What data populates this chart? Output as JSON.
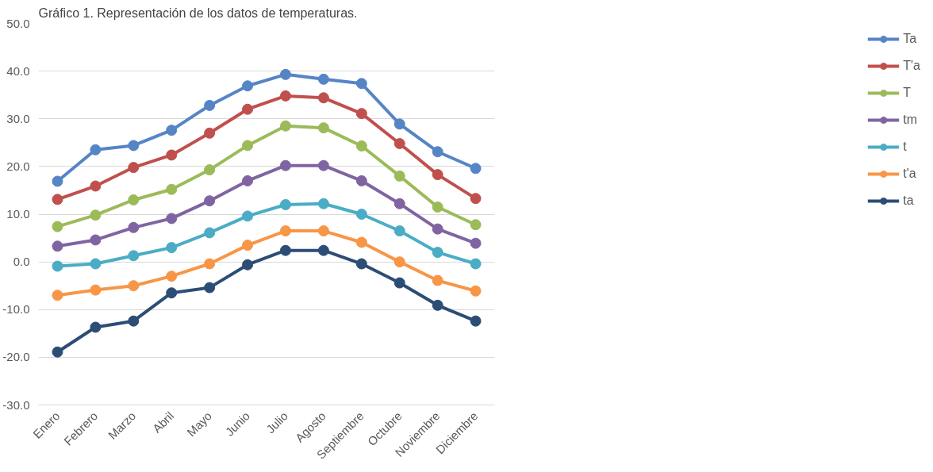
{
  "chart_data": {
    "type": "line",
    "title": "Gráfico 1. Representación de los datos de temperaturas.",
    "categories": [
      "Enero",
      "Febrero",
      "Marzo",
      "Abril",
      "Mayo",
      "Junio",
      "Julio",
      "Agosto",
      "Septiembre",
      "Octubre",
      "Noviembre",
      "Diciembre"
    ],
    "series": [
      {
        "name": "Ta",
        "color": "#5585c5",
        "values": [
          16.9,
          23.5,
          24.4,
          27.6,
          32.8,
          36.9,
          39.3,
          38.3,
          37.4,
          28.9,
          23.1,
          19.6
        ]
      },
      {
        "name": "T'a",
        "color": "#c0504d",
        "values": [
          13.1,
          15.9,
          19.8,
          22.4,
          27.0,
          32.0,
          34.8,
          34.4,
          31.1,
          24.8,
          18.3,
          13.3
        ]
      },
      {
        "name": "T",
        "color": "#9bbb59",
        "values": [
          7.4,
          9.8,
          13.0,
          15.2,
          19.3,
          24.4,
          28.5,
          28.1,
          24.3,
          18.0,
          11.5,
          7.8
        ]
      },
      {
        "name": "tm",
        "color": "#8064a2",
        "values": [
          3.3,
          4.6,
          7.2,
          9.1,
          12.8,
          17.0,
          20.2,
          20.2,
          17.0,
          12.2,
          6.9,
          3.9
        ]
      },
      {
        "name": "t",
        "color": "#4bacc6",
        "values": [
          -0.9,
          -0.4,
          1.3,
          3.0,
          6.1,
          9.6,
          12.0,
          12.2,
          10.0,
          6.5,
          2.0,
          -0.4
        ]
      },
      {
        "name": "t'a",
        "color": "#f79646",
        "values": [
          -7.0,
          -5.9,
          -5.0,
          -3.0,
          -0.4,
          3.5,
          6.5,
          6.5,
          4.1,
          0.0,
          -3.9,
          -6.1
        ]
      },
      {
        "name": "ta",
        "color": "#2c4d75",
        "values": [
          -18.9,
          -13.7,
          -12.4,
          -6.5,
          -5.4,
          -0.6,
          2.4,
          2.4,
          -0.4,
          -4.4,
          -9.1,
          -12.4
        ]
      }
    ],
    "ylim": [
      -30,
      50
    ],
    "yticks": [
      {
        "value": -30,
        "label": "-30.0"
      },
      {
        "value": -20,
        "label": "-20.0"
      },
      {
        "value": -10,
        "label": "-10.0"
      },
      {
        "value": 0,
        "label": "0.0"
      },
      {
        "value": 10,
        "label": "10.0"
      },
      {
        "value": 20,
        "label": "20.0"
      },
      {
        "value": 30,
        "label": "30.0"
      },
      {
        "value": 40,
        "label": "40.0"
      },
      {
        "value": 50,
        "label": "50.0"
      }
    ],
    "grid": "y",
    "legend": "right",
    "marker": "circle",
    "line_style": "solid"
  }
}
